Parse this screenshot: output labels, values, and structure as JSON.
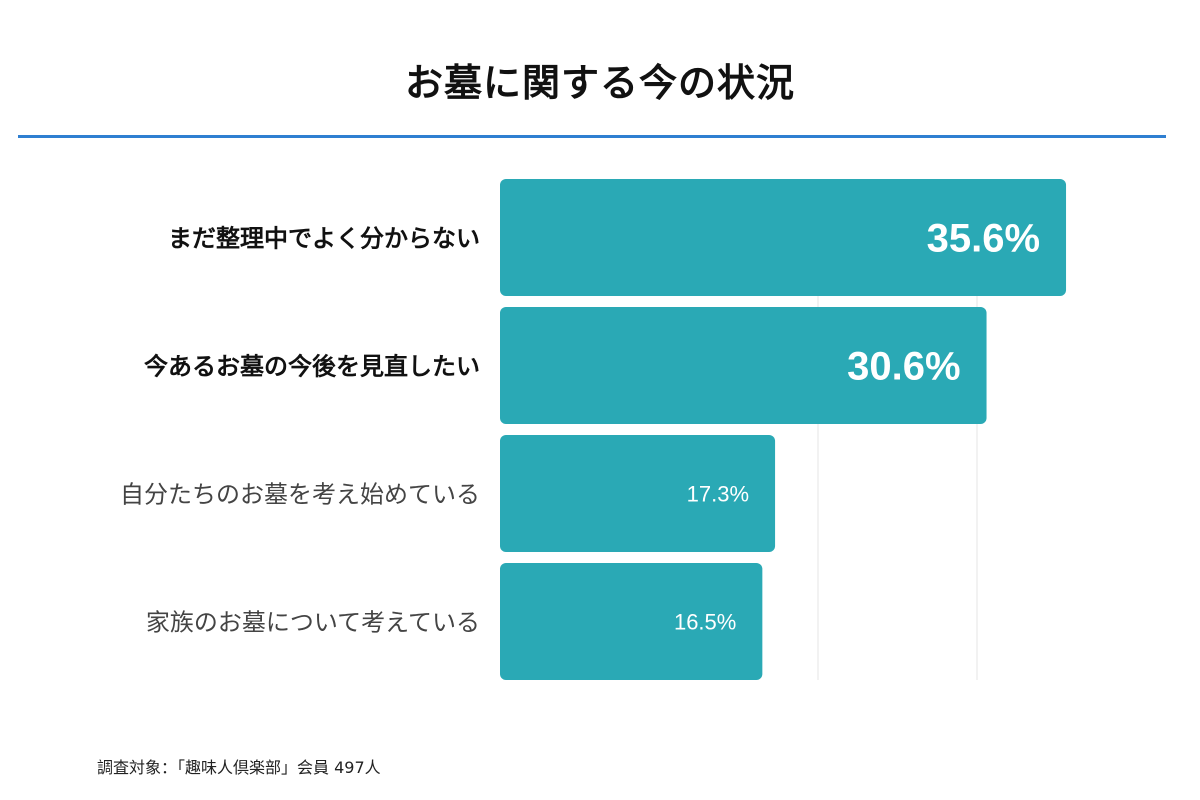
{
  "title": "お墓に関する今の状況",
  "note": "調査対象：「趣味人倶楽部」会員 497人",
  "colors": {
    "bar": "#2aa9b5",
    "rule": "#2f7fd1",
    "grid": "#e6e6e6",
    "bold_label": "#111111",
    "light_label": "#444444"
  },
  "chart_data": {
    "type": "bar",
    "orientation": "horizontal",
    "categories": [
      "まだ整理中でよく分からない",
      "今あるお墓の今後を見直したい",
      "自分たちのお墓を考え始めている",
      "家族のお墓について考えている"
    ],
    "values": [
      35.6,
      30.6,
      17.3,
      16.5
    ],
    "value_labels": [
      "35.6%",
      "30.6%",
      "17.3%",
      "16.5%"
    ],
    "emphasis": [
      true,
      true,
      false,
      false
    ],
    "xlim": [
      0,
      40
    ],
    "grid": true
  }
}
